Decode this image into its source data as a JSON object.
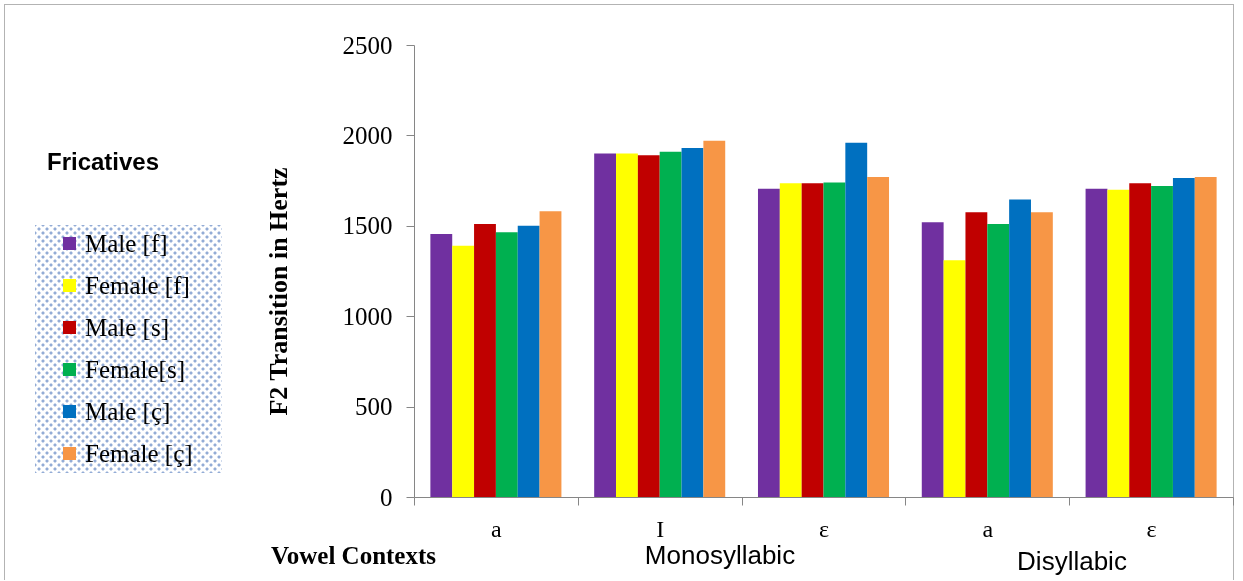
{
  "chart_data": {
    "type": "bar",
    "xlabel": "Vowel Contexts",
    "ylabel": "F2 Transition in Hertz",
    "legend_title": "Fricatives",
    "legend": "left",
    "categories": [
      "a",
      "I",
      "ε",
      "a",
      "ε"
    ],
    "series": [
      {
        "name": "Male [f]",
        "color": "#7030a0",
        "values": [
          1455,
          1900,
          1705,
          1520,
          1705
        ]
      },
      {
        "name": "Female [f]",
        "color": "#ffff00",
        "values": [
          1390,
          1900,
          1735,
          1310,
          1700
        ]
      },
      {
        "name": "Male [s]",
        "color": "#c00000",
        "values": [
          1510,
          1890,
          1735,
          1575,
          1735
        ]
      },
      {
        "name": "Female[s]",
        "color": "#00b050",
        "values": [
          1465,
          1910,
          1740,
          1510,
          1720
        ]
      },
      {
        "name": "Male [ç]",
        "color": "#0070c0",
        "values": [
          1500,
          1930,
          1960,
          1645,
          1765
        ]
      },
      {
        "name": "Female [ç]",
        "color": "#f79646",
        "values": [
          1580,
          1970,
          1770,
          1575,
          1770
        ]
      }
    ],
    "ylim": [
      0,
      2500
    ],
    "yticks": [
      0,
      500,
      1000,
      1500,
      2000,
      2500
    ],
    "annotations": [
      "Monosyllabic",
      "Disyllabic"
    ]
  }
}
